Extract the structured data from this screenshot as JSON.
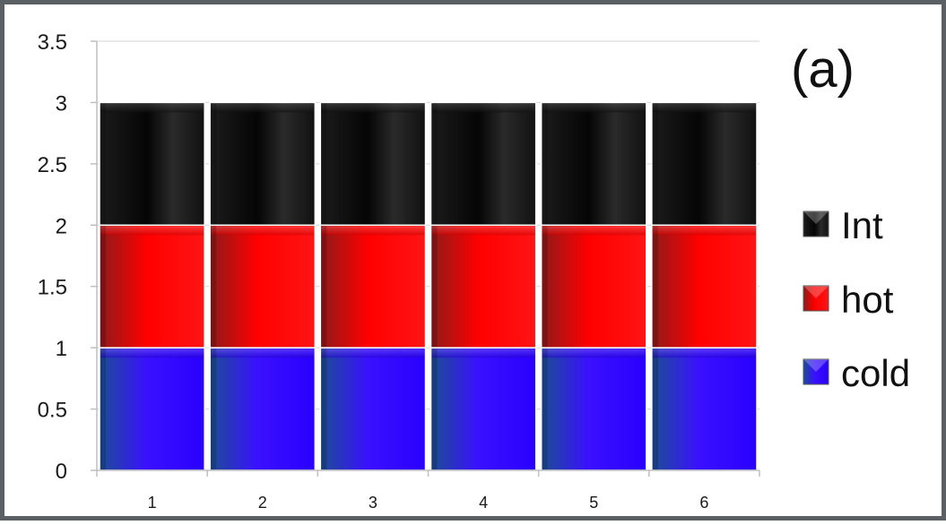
{
  "panel_label": "(a)",
  "colors": {
    "Int": "#111111",
    "hot": "#ff0000",
    "cold": "#2a00ff",
    "axis": "#bfbfbf",
    "frame": "#5a6064"
  },
  "chart_data": {
    "type": "bar",
    "stacked": true,
    "categories": [
      "1",
      "2",
      "3",
      "4",
      "5",
      "6"
    ],
    "series": [
      {
        "name": "cold",
        "values": [
          1,
          1,
          1,
          1,
          1,
          1
        ]
      },
      {
        "name": "hot",
        "values": [
          1,
          1,
          1,
          1,
          1,
          1
        ]
      },
      {
        "name": "Int",
        "values": [
          1,
          1,
          1,
          1,
          1,
          1
        ]
      }
    ],
    "ylim": [
      0,
      3.5
    ],
    "yticks": [
      "0",
      "0.5",
      "1",
      "1.5",
      "2",
      "2.5",
      "3",
      "3.5"
    ],
    "legend": {
      "position": "right",
      "order": [
        "Int",
        "hot",
        "cold"
      ]
    },
    "grid": true
  }
}
